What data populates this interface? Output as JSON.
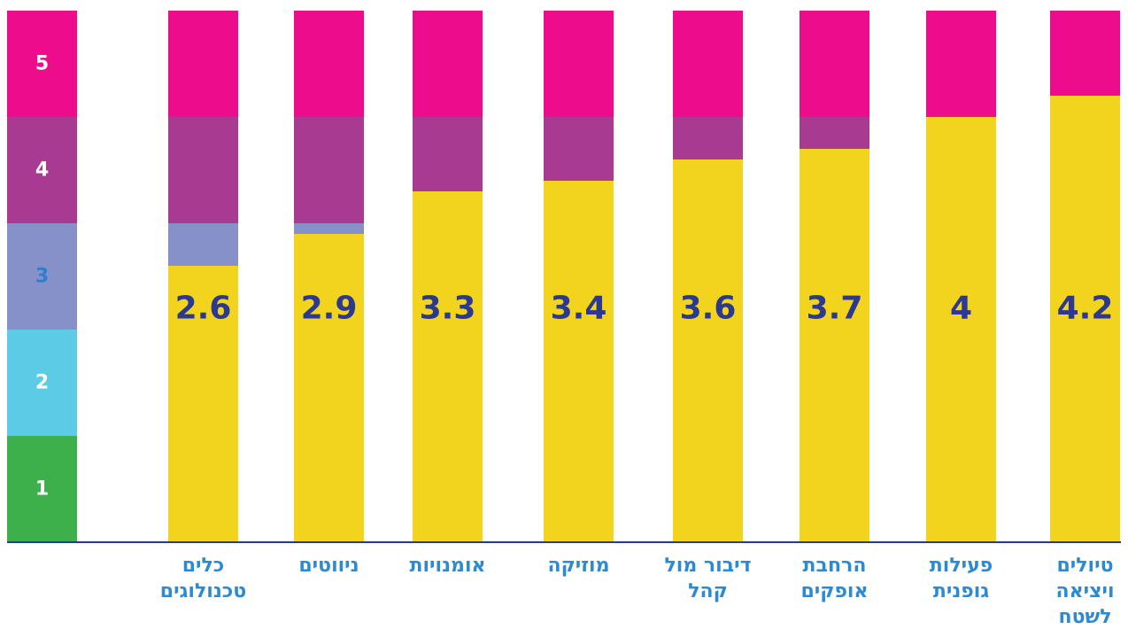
{
  "chart_data": {
    "type": "bar",
    "categories": [
      "כלים טכנולוגים",
      "ניווטים",
      "אומנויות",
      "מוזיקה",
      "דיבור מול קהל",
      "הרחבת אופקים",
      "פעילות גופנית",
      "טיולים ויציאה לשטח"
    ],
    "values": [
      2.6,
      2.9,
      3.3,
      3.4,
      3.6,
      3.7,
      4,
      4.2
    ],
    "color": "#f2d31e",
    "ylim": [
      0,
      5
    ],
    "yticks": [
      1,
      2,
      3,
      4,
      5
    ],
    "level_colors": [
      "#3db04b",
      "#5ccbe6",
      "#8591c8",
      "#a93a92",
      "#ec0c8c"
    ],
    "level_label_colors": [
      "#ffffff",
      "#ffffff",
      "#2e7fcf",
      "#ffffff",
      "#ffffff"
    ],
    "value_label_color": "#2b3990",
    "category_label_color": "#2e8ad0",
    "axis_color": "#2b3990"
  }
}
